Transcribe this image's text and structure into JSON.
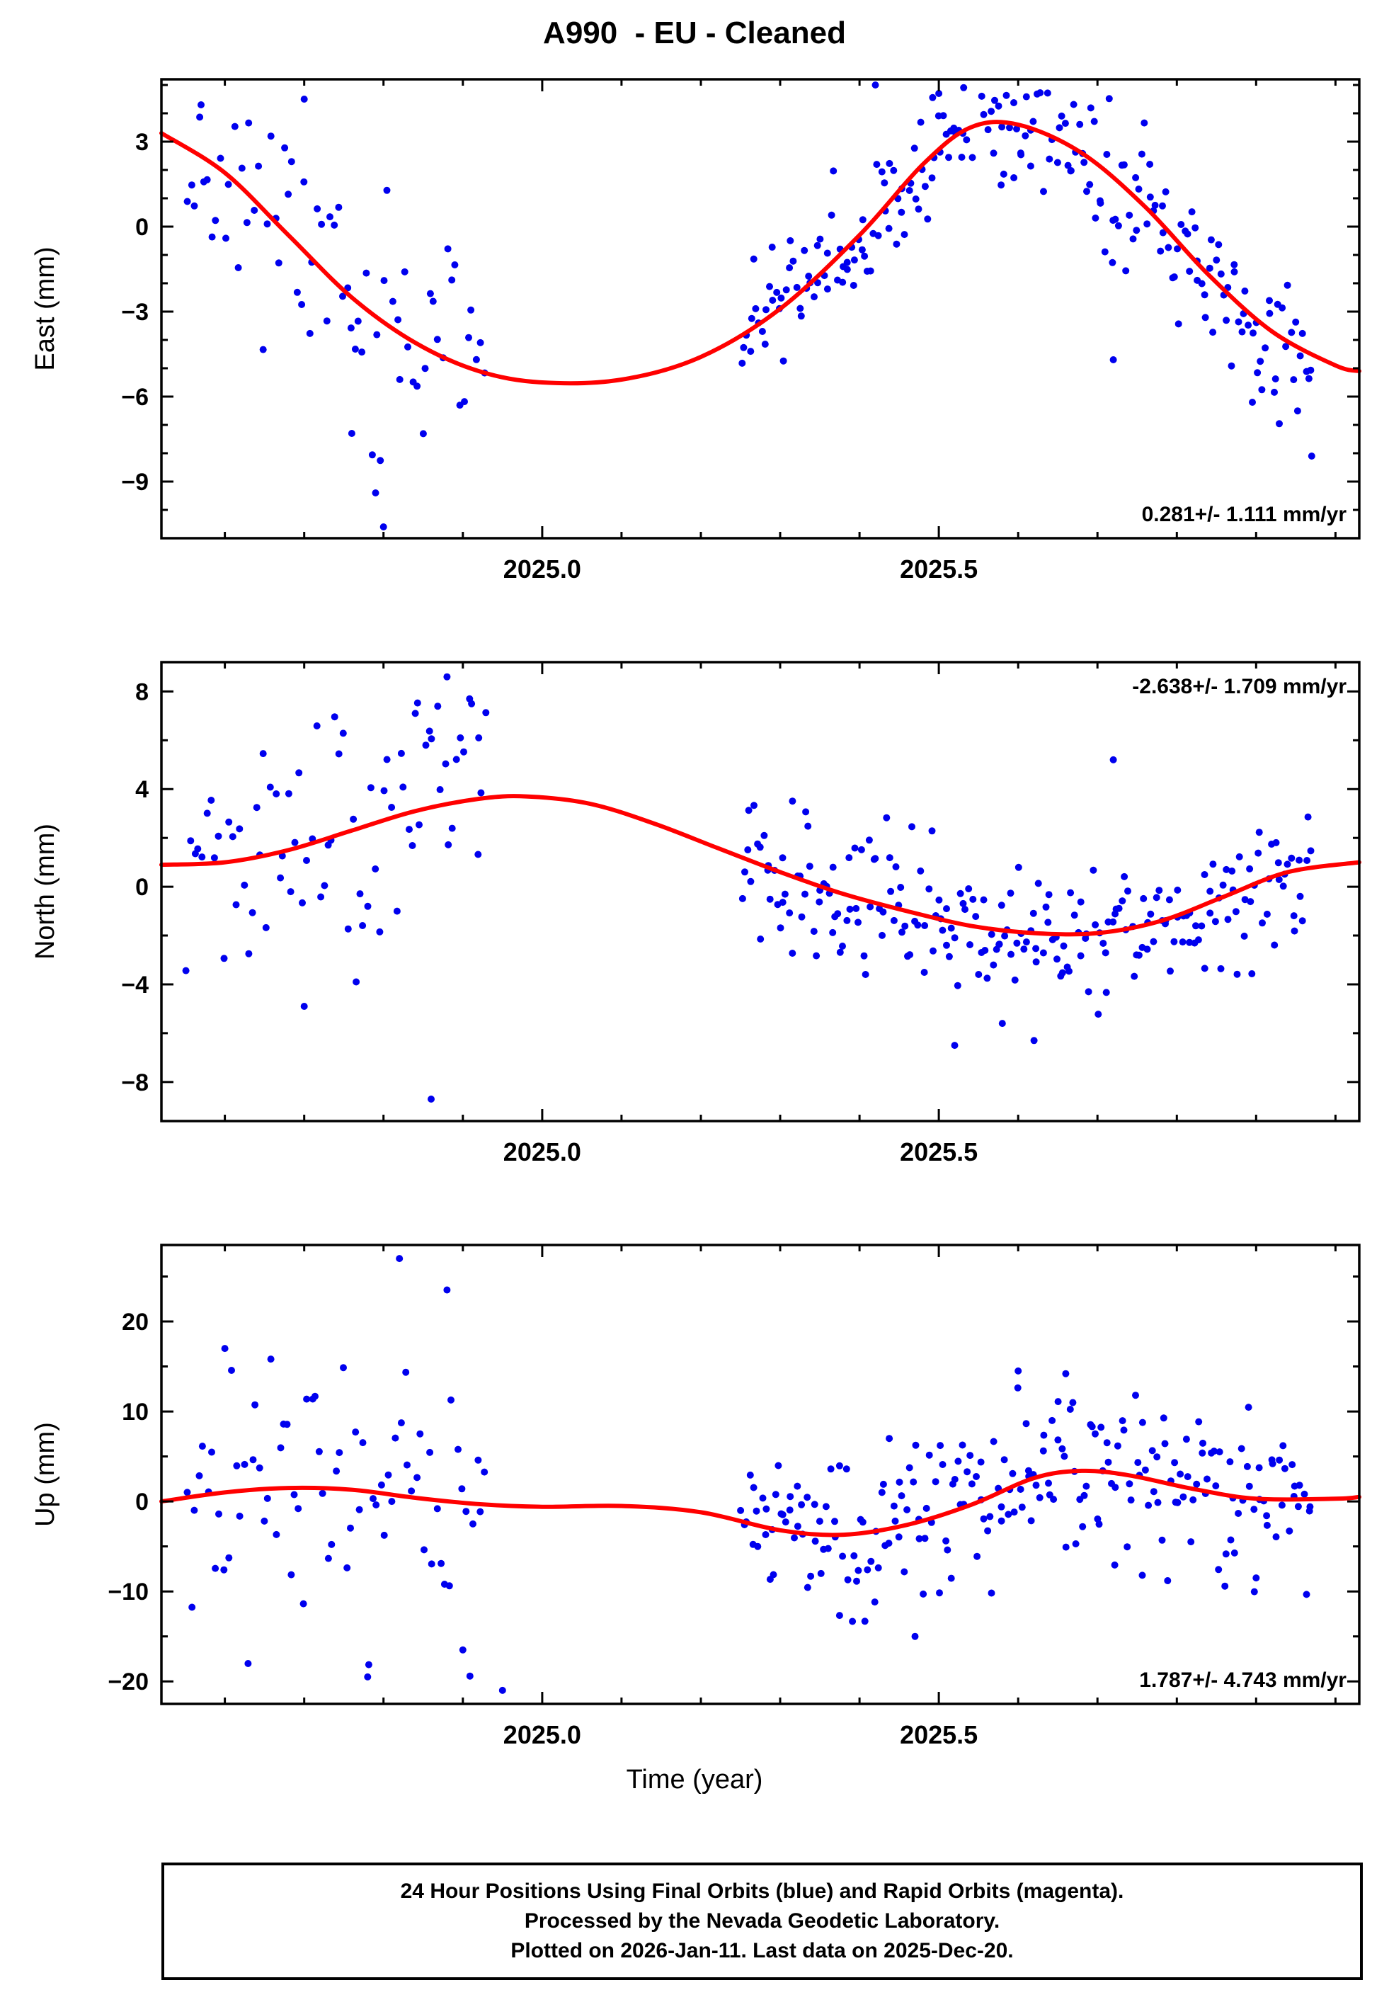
{
  "page": {
    "title": "A990  - EU - Cleaned",
    "xlabel": "Time (year)"
  },
  "footer": {
    "line1": "24 Hour Positions Using Final Orbits (blue) and Rapid Orbits (magenta).",
    "line2": "Processed by the Nevada Geodetic Laboratory.",
    "line3": "Plotted on 2026-Jan-11. Last data on 2025-Dec-20."
  },
  "colors": {
    "point_blue": "#0000ee",
    "rapid_magenta": "#ee00ee",
    "trend_red": "#ff0000",
    "axis_black": "#000000"
  },
  "chart_data": {
    "type": "scatter",
    "title": "A990  - EU - Cleaned",
    "xlabel": "Time (year)",
    "station": "A990",
    "reference_frame": "EU",
    "processing": "Cleaned",
    "xlim": [
      2024.52,
      2026.03
    ],
    "xticks": [
      {
        "value": 2025.0,
        "label": "2025.0"
      },
      {
        "value": 2025.5,
        "label": "2025.5"
      }
    ],
    "x_minor_step": 0.1,
    "data_gap": [
      2024.94,
      2025.25
    ],
    "panels": [
      {
        "name": "east",
        "ylabel": "East (mm)",
        "units": "mm",
        "ylim": [
          -11.0,
          5.2
        ],
        "yticks": [
          3,
          0,
          -3,
          -6,
          -9
        ],
        "y_minor_step": 1,
        "annotation": {
          "text": "0.281+/- 1.111 mm/yr",
          "corner": "bottom-right"
        },
        "velocity_mm_yr": 0.281,
        "velocity_sigma_mm_yr": 1.111,
        "trend_curve": [
          [
            2024.52,
            3.3
          ],
          [
            2024.6,
            1.9
          ],
          [
            2024.68,
            -0.3
          ],
          [
            2024.76,
            -2.5
          ],
          [
            2024.84,
            -4.1
          ],
          [
            2024.92,
            -5.1
          ],
          [
            2025.0,
            -5.5
          ],
          [
            2025.1,
            -5.4
          ],
          [
            2025.2,
            -4.6
          ],
          [
            2025.3,
            -2.9
          ],
          [
            2025.4,
            -0.3
          ],
          [
            2025.48,
            2.2
          ],
          [
            2025.54,
            3.5
          ],
          [
            2025.6,
            3.6
          ],
          [
            2025.68,
            2.6
          ],
          [
            2025.76,
            0.7
          ],
          [
            2025.84,
            -1.7
          ],
          [
            2025.92,
            -3.7
          ],
          [
            2026.0,
            -4.9
          ],
          [
            2026.03,
            -5.1
          ]
        ],
        "scatter": {
          "seed": 11,
          "segments": [
            {
              "x_start": 2024.55,
              "x_end": 2024.93,
              "n": 72,
              "sigma": 2.1
            },
            {
              "x_start": 2025.25,
              "x_end": 2025.97,
              "n": 230,
              "sigma": 1.3
            }
          ]
        },
        "outliers": [
          [
            2024.8,
            -10.6
          ],
          [
            2024.79,
            -9.4
          ],
          [
            2024.76,
            -7.3
          ],
          [
            2024.7,
            4.5
          ],
          [
            2024.57,
            4.3
          ],
          [
            2025.42,
            5.0
          ],
          [
            2025.5,
            4.7
          ],
          [
            2025.97,
            -8.1
          ],
          [
            2025.72,
            -4.7
          ]
        ]
      },
      {
        "name": "north",
        "ylabel": "North (mm)",
        "units": "mm",
        "ylim": [
          -9.6,
          9.2
        ],
        "yticks": [
          8,
          4,
          0,
          -4,
          -8
        ],
        "y_minor_step": 2,
        "annotation": {
          "text": "-2.638+/- 1.709 mm/yr",
          "corner": "top-right"
        },
        "velocity_mm_yr": -2.638,
        "velocity_sigma_mm_yr": 1.709,
        "trend_curve": [
          [
            2024.52,
            0.9
          ],
          [
            2024.6,
            1.0
          ],
          [
            2024.68,
            1.5
          ],
          [
            2024.76,
            2.3
          ],
          [
            2024.84,
            3.1
          ],
          [
            2024.92,
            3.6
          ],
          [
            2024.98,
            3.7
          ],
          [
            2025.06,
            3.4
          ],
          [
            2025.14,
            2.6
          ],
          [
            2025.22,
            1.6
          ],
          [
            2025.3,
            0.6
          ],
          [
            2025.38,
            -0.3
          ],
          [
            2025.46,
            -1.0
          ],
          [
            2025.54,
            -1.6
          ],
          [
            2025.62,
            -1.9
          ],
          [
            2025.7,
            -1.9
          ],
          [
            2025.78,
            -1.4
          ],
          [
            2025.86,
            -0.4
          ],
          [
            2025.94,
            0.6
          ],
          [
            2026.03,
            1.0
          ]
        ],
        "scatter": {
          "seed": 23,
          "segments": [
            {
              "x_start": 2024.55,
              "x_end": 2024.93,
              "n": 75,
              "sigma": 2.8
            },
            {
              "x_start": 2025.25,
              "x_end": 2025.97,
              "n": 230,
              "sigma": 1.5
            }
          ]
        },
        "outliers": [
          [
            2024.86,
            -8.7
          ],
          [
            2024.88,
            8.6
          ],
          [
            2024.84,
            7.1
          ],
          [
            2024.92,
            6.1
          ],
          [
            2025.52,
            -6.5
          ],
          [
            2025.62,
            -6.3
          ],
          [
            2025.58,
            -5.6
          ],
          [
            2025.72,
            5.2
          ],
          [
            2024.7,
            -4.9
          ]
        ]
      },
      {
        "name": "up",
        "ylabel": "Up (mm)",
        "units": "mm",
        "ylim": [
          -22.5,
          28.5
        ],
        "yticks": [
          20,
          10,
          0,
          -10,
          -20
        ],
        "y_minor_step": 5,
        "annotation": {
          "text": "1.787+/- 4.743 mm/yr",
          "corner": "bottom-right"
        },
        "velocity_mm_yr": 1.787,
        "velocity_sigma_mm_yr": 4.743,
        "trend_curve": [
          [
            2024.52,
            0.0
          ],
          [
            2024.6,
            1.0
          ],
          [
            2024.68,
            1.5
          ],
          [
            2024.76,
            1.3
          ],
          [
            2024.84,
            0.4
          ],
          [
            2024.92,
            -0.3
          ],
          [
            2025.0,
            -0.6
          ],
          [
            2025.1,
            -0.5
          ],
          [
            2025.2,
            -1.2
          ],
          [
            2025.3,
            -3.2
          ],
          [
            2025.38,
            -3.7
          ],
          [
            2025.46,
            -2.6
          ],
          [
            2025.54,
            -0.4
          ],
          [
            2025.62,
            2.6
          ],
          [
            2025.68,
            3.4
          ],
          [
            2025.74,
            2.9
          ],
          [
            2025.82,
            1.4
          ],
          [
            2025.9,
            0.3
          ],
          [
            2026.0,
            0.3
          ],
          [
            2026.03,
            0.5
          ]
        ],
        "scatter": {
          "seed": 37,
          "segments": [
            {
              "x_start": 2024.55,
              "x_end": 2024.93,
              "n": 75,
              "sigma": 8.0
            },
            {
              "x_start": 2025.25,
              "x_end": 2025.97,
              "n": 230,
              "sigma": 4.5
            }
          ]
        },
        "outliers": [
          [
            2024.82,
            27.0
          ],
          [
            2024.88,
            23.5
          ],
          [
            2024.78,
            -19.5
          ],
          [
            2024.95,
            -21.0
          ],
          [
            2024.6,
            17.0
          ],
          [
            2025.47,
            -15.0
          ],
          [
            2025.6,
            14.5
          ],
          [
            2025.66,
            14.2
          ],
          [
            2024.9,
            -16.5
          ],
          [
            2025.9,
            -8.5
          ]
        ]
      }
    ]
  }
}
